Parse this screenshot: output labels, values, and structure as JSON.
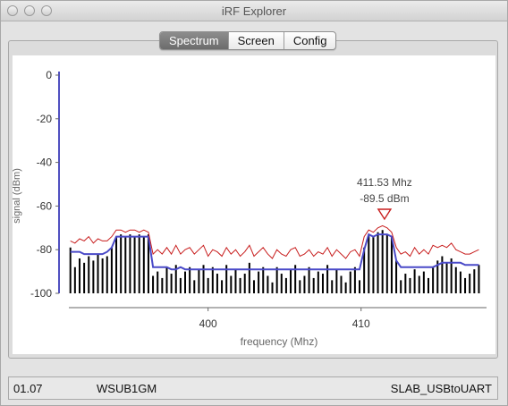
{
  "window": {
    "title": "iRF Explorer"
  },
  "tabs": [
    {
      "label": "Spectrum",
      "active": true
    },
    {
      "label": "Screen",
      "active": false
    },
    {
      "label": "Config",
      "active": false
    }
  ],
  "status": {
    "version": "01.07",
    "device_id": "WSUB1GM",
    "port": "SLAB_USBtoUART"
  },
  "chart_data": {
    "type": "line",
    "xlabel": "frequency (Mhz)",
    "ylabel": "signal (dBm)",
    "xlim": [
      390.9,
      418.2
    ],
    "ylim": [
      -100,
      0
    ],
    "x_ticks": [
      400,
      410
    ],
    "y_ticks": [
      0,
      -20,
      -40,
      -60,
      -80,
      -100
    ],
    "marker": {
      "freq": 411.53,
      "level": -89.5,
      "freq_label": "411.53 Mhz",
      "level_label": "-89.5 dBm"
    },
    "colors": {
      "bars": "#000000",
      "average": "#4a4ac8",
      "max": "#c81e1e",
      "axis": "#5050c0"
    },
    "x": [
      391.0,
      391.3,
      391.6,
      391.9,
      392.2,
      392.5,
      392.8,
      393.1,
      393.4,
      393.7,
      394.0,
      394.3,
      394.6,
      394.9,
      395.2,
      395.5,
      395.8,
      396.1,
      396.4,
      396.7,
      397.0,
      397.3,
      397.6,
      397.9,
      398.2,
      398.5,
      398.8,
      399.1,
      399.4,
      399.7,
      400.0,
      400.3,
      400.6,
      400.9,
      401.2,
      401.5,
      401.8,
      402.1,
      402.4,
      402.7,
      403.0,
      403.3,
      403.6,
      403.9,
      404.2,
      404.5,
      404.8,
      405.1,
      405.4,
      405.7,
      406.0,
      406.3,
      406.6,
      406.9,
      407.2,
      407.5,
      407.8,
      408.1,
      408.4,
      408.7,
      409.0,
      409.3,
      409.6,
      409.9,
      410.2,
      410.5,
      410.8,
      411.1,
      411.4,
      411.7,
      412.0,
      412.3,
      412.6,
      412.9,
      413.2,
      413.5,
      413.8,
      414.1,
      414.4,
      414.7,
      415.0,
      415.3,
      415.6,
      415.9,
      416.2,
      416.5,
      416.8,
      417.1,
      417.4,
      417.7
    ],
    "series": [
      {
        "name": "",
        "kind": "bars",
        "values": [
          -79,
          -88,
          -84,
          -86,
          -83,
          -85,
          -82,
          -84,
          -83,
          -79,
          -74,
          -73,
          -74,
          -73,
          -74,
          -73,
          -74,
          -73,
          -92,
          -90,
          -93,
          -88,
          -91,
          -87,
          -93,
          -90,
          -88,
          -94,
          -89,
          -87,
          -93,
          -88,
          -91,
          -94,
          -87,
          -92,
          -89,
          -93,
          -91,
          -86,
          -94,
          -90,
          -88,
          -92,
          -95,
          -88,
          -91,
          -93,
          -89,
          -87,
          -94,
          -92,
          -88,
          -93,
          -90,
          -91,
          -87,
          -94,
          -89,
          -92,
          -95,
          -90,
          -88,
          -94,
          -79,
          -73,
          -74,
          -72,
          -71,
          -73,
          -74,
          -85,
          -94,
          -91,
          -93,
          -89,
          -92,
          -90,
          -93,
          -88,
          -85,
          -83,
          -86,
          -84,
          -88,
          -90,
          -93,
          -91,
          -89,
          -87
        ]
      },
      {
        "name": "",
        "kind": "average",
        "values": [
          -81,
          -81,
          -81,
          -82,
          -82,
          -82,
          -82,
          -82,
          -81,
          -79,
          -74,
          -74,
          -74,
          -74,
          -74,
          -74,
          -74,
          -74,
          -88,
          -88,
          -88,
          -88,
          -89,
          -89,
          -88,
          -89,
          -89,
          -89,
          -89,
          -89,
          -89,
          -89,
          -89,
          -89,
          -89,
          -89,
          -89,
          -89,
          -89,
          -89,
          -89,
          -89,
          -89,
          -89,
          -89,
          -89,
          -89,
          -89,
          -89,
          -89,
          -89,
          -89,
          -89,
          -89,
          -89,
          -89,
          -89,
          -89,
          -89,
          -89,
          -89,
          -89,
          -89,
          -89,
          -80,
          -73,
          -74,
          -73,
          -73,
          -73,
          -74,
          -85,
          -88,
          -88,
          -88,
          -88,
          -88,
          -88,
          -88,
          -88,
          -87,
          -86,
          -86,
          -86,
          -86,
          -86,
          -87,
          -87,
          -87,
          -87
        ]
      },
      {
        "name": "",
        "kind": "max",
        "values": [
          -76,
          -77,
          -75,
          -76,
          -74,
          -77,
          -75,
          -76,
          -76,
          -74,
          -71,
          -71,
          -72,
          -71,
          -71,
          -72,
          -71,
          -72,
          -82,
          -80,
          -82,
          -79,
          -82,
          -78,
          -82,
          -80,
          -79,
          -82,
          -80,
          -78,
          -83,
          -80,
          -81,
          -83,
          -79,
          -82,
          -80,
          -83,
          -81,
          -78,
          -83,
          -81,
          -79,
          -82,
          -84,
          -80,
          -82,
          -83,
          -80,
          -79,
          -83,
          -82,
          -80,
          -83,
          -81,
          -82,
          -79,
          -83,
          -80,
          -82,
          -84,
          -81,
          -80,
          -83,
          -74,
          -71,
          -72,
          -70,
          -69,
          -70,
          -72,
          -79,
          -82,
          -81,
          -83,
          -79,
          -82,
          -80,
          -82,
          -78,
          -79,
          -78,
          -79,
          -77,
          -80,
          -81,
          -82,
          -82,
          -81,
          -80
        ]
      }
    ]
  }
}
